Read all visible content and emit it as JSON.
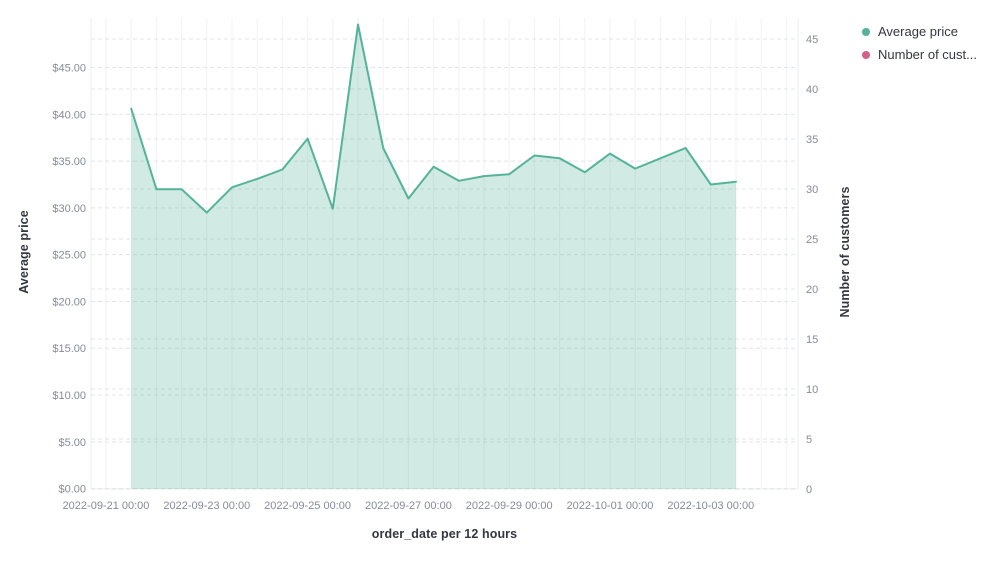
{
  "legend": {
    "items": [
      {
        "label": "Average price",
        "color": "#54b399"
      },
      {
        "label": "Number of cust...",
        "color": "#d36086"
      }
    ]
  },
  "axes": {
    "left": {
      "title": "Average price",
      "tick_labels": [
        "$0.00",
        "$5.00",
        "$10.00",
        "$15.00",
        "$20.00",
        "$25.00",
        "$30.00",
        "$35.00",
        "$40.00",
        "$45.00"
      ],
      "tick_values": [
        0,
        5,
        10,
        15,
        20,
        25,
        30,
        35,
        40,
        45
      ]
    },
    "right": {
      "title": "Number of customers",
      "tick_labels": [
        "0",
        "5",
        "10",
        "15",
        "20",
        "25",
        "30",
        "35",
        "40",
        "45"
      ],
      "tick_values": [
        0,
        5,
        10,
        15,
        20,
        25,
        30,
        35,
        40,
        45
      ]
    },
    "bottom": {
      "title": "order_date per 12 hours",
      "tick_labels": [
        "2022-09-21 00:00",
        "2022-09-23 00:00",
        "2022-09-25 00:00",
        "2022-09-27 00:00",
        "2022-09-29 00:00",
        "2022-10-01 00:00",
        "2022-10-03 00:00"
      ],
      "tick_steps": [
        0,
        4,
        8,
        12,
        16,
        20,
        24
      ]
    }
  },
  "chart_data": {
    "type": "area",
    "title": "",
    "xlabel": "order_date per 12 hours",
    "ylabel_left": "Average price",
    "ylabel_right": "Number of customers",
    "x_interval": "12 hours",
    "x": [
      "2022-09-21 12:00",
      "2022-09-22 00:00",
      "2022-09-22 12:00",
      "2022-09-23 00:00",
      "2022-09-23 12:00",
      "2022-09-24 00:00",
      "2022-09-24 12:00",
      "2022-09-25 00:00",
      "2022-09-25 12:00",
      "2022-09-26 00:00",
      "2022-09-26 12:00",
      "2022-09-27 00:00",
      "2022-09-27 12:00",
      "2022-09-28 00:00",
      "2022-09-28 12:00",
      "2022-09-29 00:00",
      "2022-09-29 12:00",
      "2022-09-30 00:00",
      "2022-09-30 12:00",
      "2022-10-01 00:00",
      "2022-10-01 12:00",
      "2022-10-02 00:00",
      "2022-10-02 12:00",
      "2022-10-03 00:00",
      "2022-10-03 12:00"
    ],
    "series": [
      {
        "name": "Average price",
        "axis": "left",
        "color": "#54b399",
        "fill_opacity": 0.27,
        "values": [
          40.6,
          32.0,
          32.0,
          29.5,
          32.2,
          33.1,
          34.1,
          37.4,
          29.9,
          49.6,
          36.4,
          31.0,
          34.4,
          32.9,
          33.4,
          33.6,
          35.6,
          35.3,
          33.8,
          35.8,
          34.2,
          35.3,
          36.4,
          32.5,
          32.8
        ]
      },
      {
        "name": "Number of customers",
        "axis": "right",
        "color": "#d36086",
        "values": []
      }
    ],
    "ylim_left": [
      0,
      50.3
    ],
    "ylim_right": [
      0,
      47
    ],
    "grid": true,
    "legend_position": "top-right",
    "colors": {
      "line": "#54b399",
      "area_fill": "rgba(84,179,153,0.27)",
      "v_gridline": "#f1f2f6",
      "h_gridline_dashed": "#e1e4ea",
      "axis_line": "#eaecf1",
      "tick_text": "#848b99",
      "title_text": "#343741"
    }
  }
}
